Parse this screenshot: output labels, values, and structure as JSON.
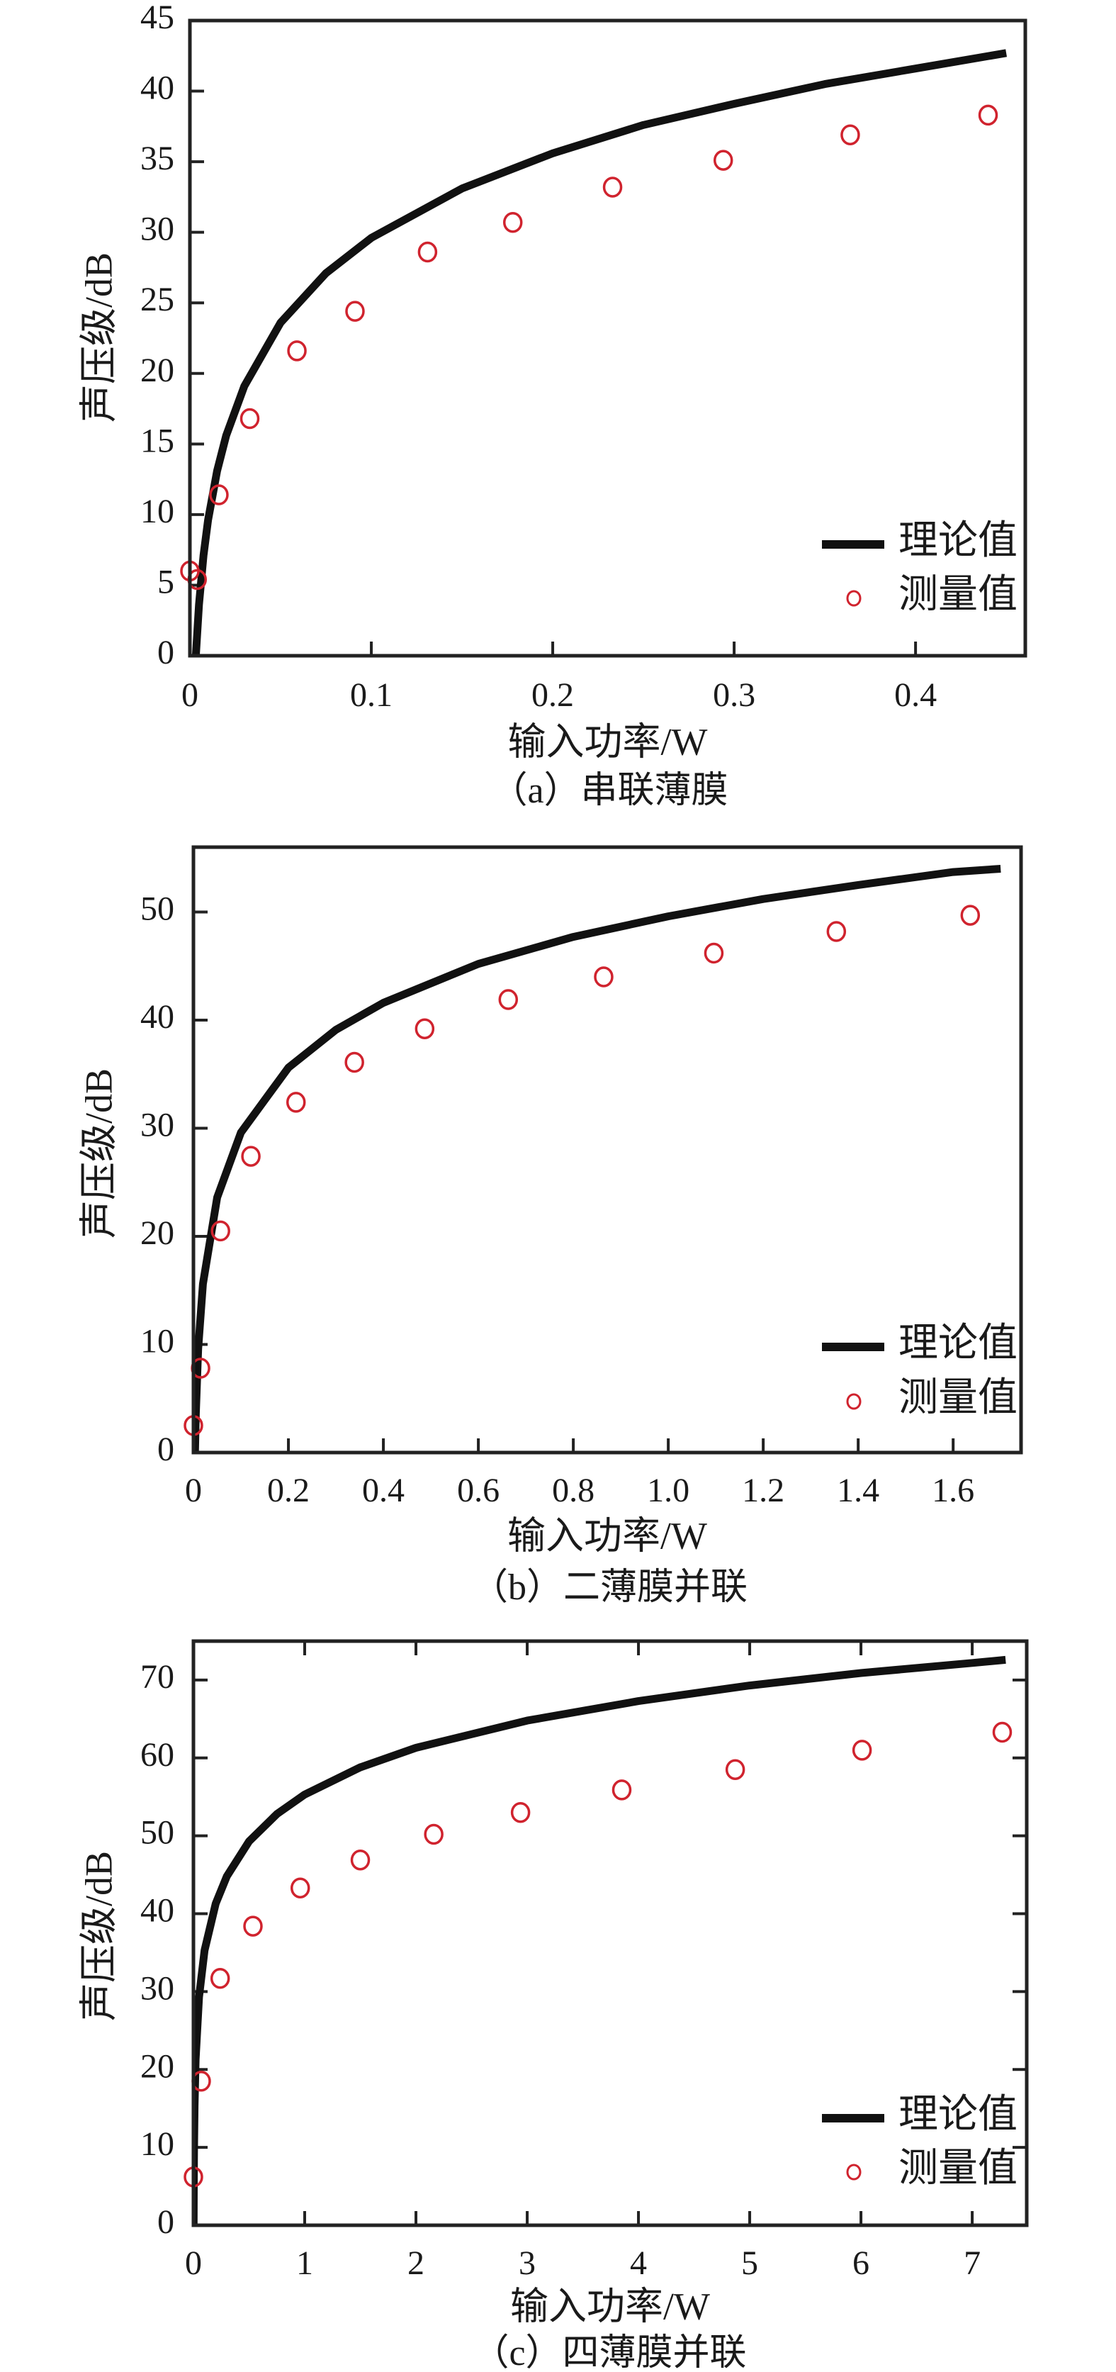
{
  "colors": {
    "theory": "#111111",
    "measured": "#d0232e",
    "frame": "#222222"
  },
  "chart_data": [
    {
      "type": "line",
      "caption": "（a）串联薄膜",
      "xlabel": "输入功率/W",
      "ylabel": "声压级/dB",
      "xlim": [
        0,
        0.4605
      ],
      "ylim": [
        0,
        45
      ],
      "xticks": [
        0,
        0.1,
        0.2,
        0.3,
        0.4
      ],
      "xtick_labels": [
        "0",
        "0.1",
        "0.2",
        "0.3",
        "0.4"
      ],
      "yticks": [
        0,
        5,
        10,
        15,
        20,
        25,
        30,
        35,
        40,
        45
      ],
      "ytick_labels": [
        "0",
        "5",
        "10",
        "15",
        "20",
        "25",
        "30",
        "35",
        "40",
        "45"
      ],
      "mirror_ticks": false,
      "grid": false,
      "legend": {
        "placement": "lower-right",
        "entries": [
          "理论值",
          "测量值"
        ]
      },
      "series": [
        {
          "name": "理论值",
          "kind": "line",
          "x": [
            0.0033,
            0.005,
            0.0075,
            0.01,
            0.015,
            0.02,
            0.03,
            0.05,
            0.075,
            0.1,
            0.15,
            0.2,
            0.25,
            0.3,
            0.35,
            0.4,
            0.45
          ],
          "y": [
            0,
            3.6,
            7.1,
            9.6,
            13.1,
            15.6,
            19.1,
            23.6,
            27.1,
            29.6,
            33.1,
            35.6,
            37.6,
            39.1,
            40.5,
            41.6,
            42.7
          ]
        },
        {
          "name": "测量值",
          "kind": "scatter",
          "x": [
            0.0,
            0.004,
            0.016,
            0.033,
            0.059,
            0.091,
            0.131,
            0.178,
            0.233,
            0.294,
            0.364,
            0.44
          ],
          "y": [
            6.0,
            5.4,
            11.4,
            16.8,
            21.6,
            24.4,
            28.6,
            30.7,
            33.2,
            35.1,
            36.9,
            38.3
          ]
        }
      ]
    },
    {
      "type": "line",
      "caption": "（b）二薄膜并联",
      "xlabel": "输入功率/W",
      "ylabel": "声压级/dB",
      "xlim": [
        0,
        1.743
      ],
      "ylim": [
        0,
        56
      ],
      "xticks": [
        0,
        0.2,
        0.4,
        0.6,
        0.8,
        1.0,
        1.2,
        1.4,
        1.6
      ],
      "xtick_labels": [
        "0",
        "0.2",
        "0.4",
        "0.6",
        "0.8",
        "1.0",
        "1.2",
        "1.4",
        "1.6"
      ],
      "yticks": [
        0,
        10,
        20,
        30,
        40,
        50
      ],
      "ytick_labels": [
        "0",
        "10",
        "20",
        "30",
        "40",
        "50"
      ],
      "mirror_ticks": false,
      "grid": false,
      "legend": {
        "placement": "lower-right",
        "entries": [
          "理论值",
          "测量值"
        ]
      },
      "series": [
        {
          "name": "理论值",
          "kind": "line",
          "x": [
            0.0033,
            0.005,
            0.01,
            0.02,
            0.05,
            0.1,
            0.2,
            0.3,
            0.4,
            0.6,
            0.8,
            1.0,
            1.2,
            1.4,
            1.6,
            1.7
          ],
          "y": [
            0,
            3.6,
            9.6,
            15.6,
            23.6,
            29.6,
            35.6,
            39.1,
            41.6,
            45.2,
            47.7,
            49.6,
            51.2,
            52.5,
            53.7,
            54.0
          ]
        },
        {
          "name": "测量值",
          "kind": "scatter",
          "x": [
            0.0,
            0.015,
            0.057,
            0.121,
            0.216,
            0.339,
            0.487,
            0.663,
            0.864,
            1.096,
            1.354,
            1.636
          ],
          "y": [
            2.5,
            7.8,
            20.5,
            27.4,
            32.4,
            36.1,
            39.2,
            41.9,
            44.0,
            46.2,
            48.2,
            49.7
          ]
        }
      ]
    },
    {
      "type": "line",
      "caption": "（c）四薄膜并联",
      "xlabel": "输入功率/W",
      "ylabel": "声压级/dB",
      "xlim": [
        0,
        7.49
      ],
      "ylim": [
        0,
        75
      ],
      "xticks": [
        0,
        1,
        2,
        3,
        4,
        5,
        6,
        7
      ],
      "xtick_labels": [
        "0",
        "1",
        "2",
        "3",
        "4",
        "5",
        "6",
        "7"
      ],
      "yticks": [
        0,
        10,
        20,
        30,
        40,
        50,
        60,
        70
      ],
      "ytick_labels": [
        "0",
        "10",
        "20",
        "30",
        "40",
        "50",
        "60",
        "70"
      ],
      "mirror_ticks": true,
      "grid": false,
      "legend": {
        "placement": "lower-right",
        "entries": [
          "理论值",
          "测量值"
        ]
      },
      "series": [
        {
          "name": "理论值",
          "kind": "line",
          "x": [
            0.0017,
            0.003,
            0.005,
            0.01,
            0.02,
            0.05,
            0.1,
            0.2,
            0.3,
            0.5,
            0.75,
            1,
            1.5,
            2,
            3,
            4,
            5,
            6,
            7,
            7.3
          ],
          "y": [
            0,
            4.9,
            9.3,
            15.3,
            21.3,
            29.3,
            35.3,
            41.3,
            44.8,
            49.3,
            52.8,
            55.3,
            58.8,
            61.3,
            64.8,
            67.3,
            69.3,
            70.9,
            72.2,
            72.6
          ]
        },
        {
          "name": "测量值",
          "kind": "scatter",
          "x": [
            0.0,
            0.07,
            0.24,
            0.535,
            0.96,
            1.5,
            2.16,
            2.94,
            3.85,
            4.87,
            6.01,
            7.27
          ],
          "y": [
            6.2,
            18.5,
            31.7,
            38.4,
            43.3,
            46.9,
            50.2,
            53.0,
            55.9,
            58.5,
            61.0,
            63.3
          ]
        }
      ]
    }
  ]
}
